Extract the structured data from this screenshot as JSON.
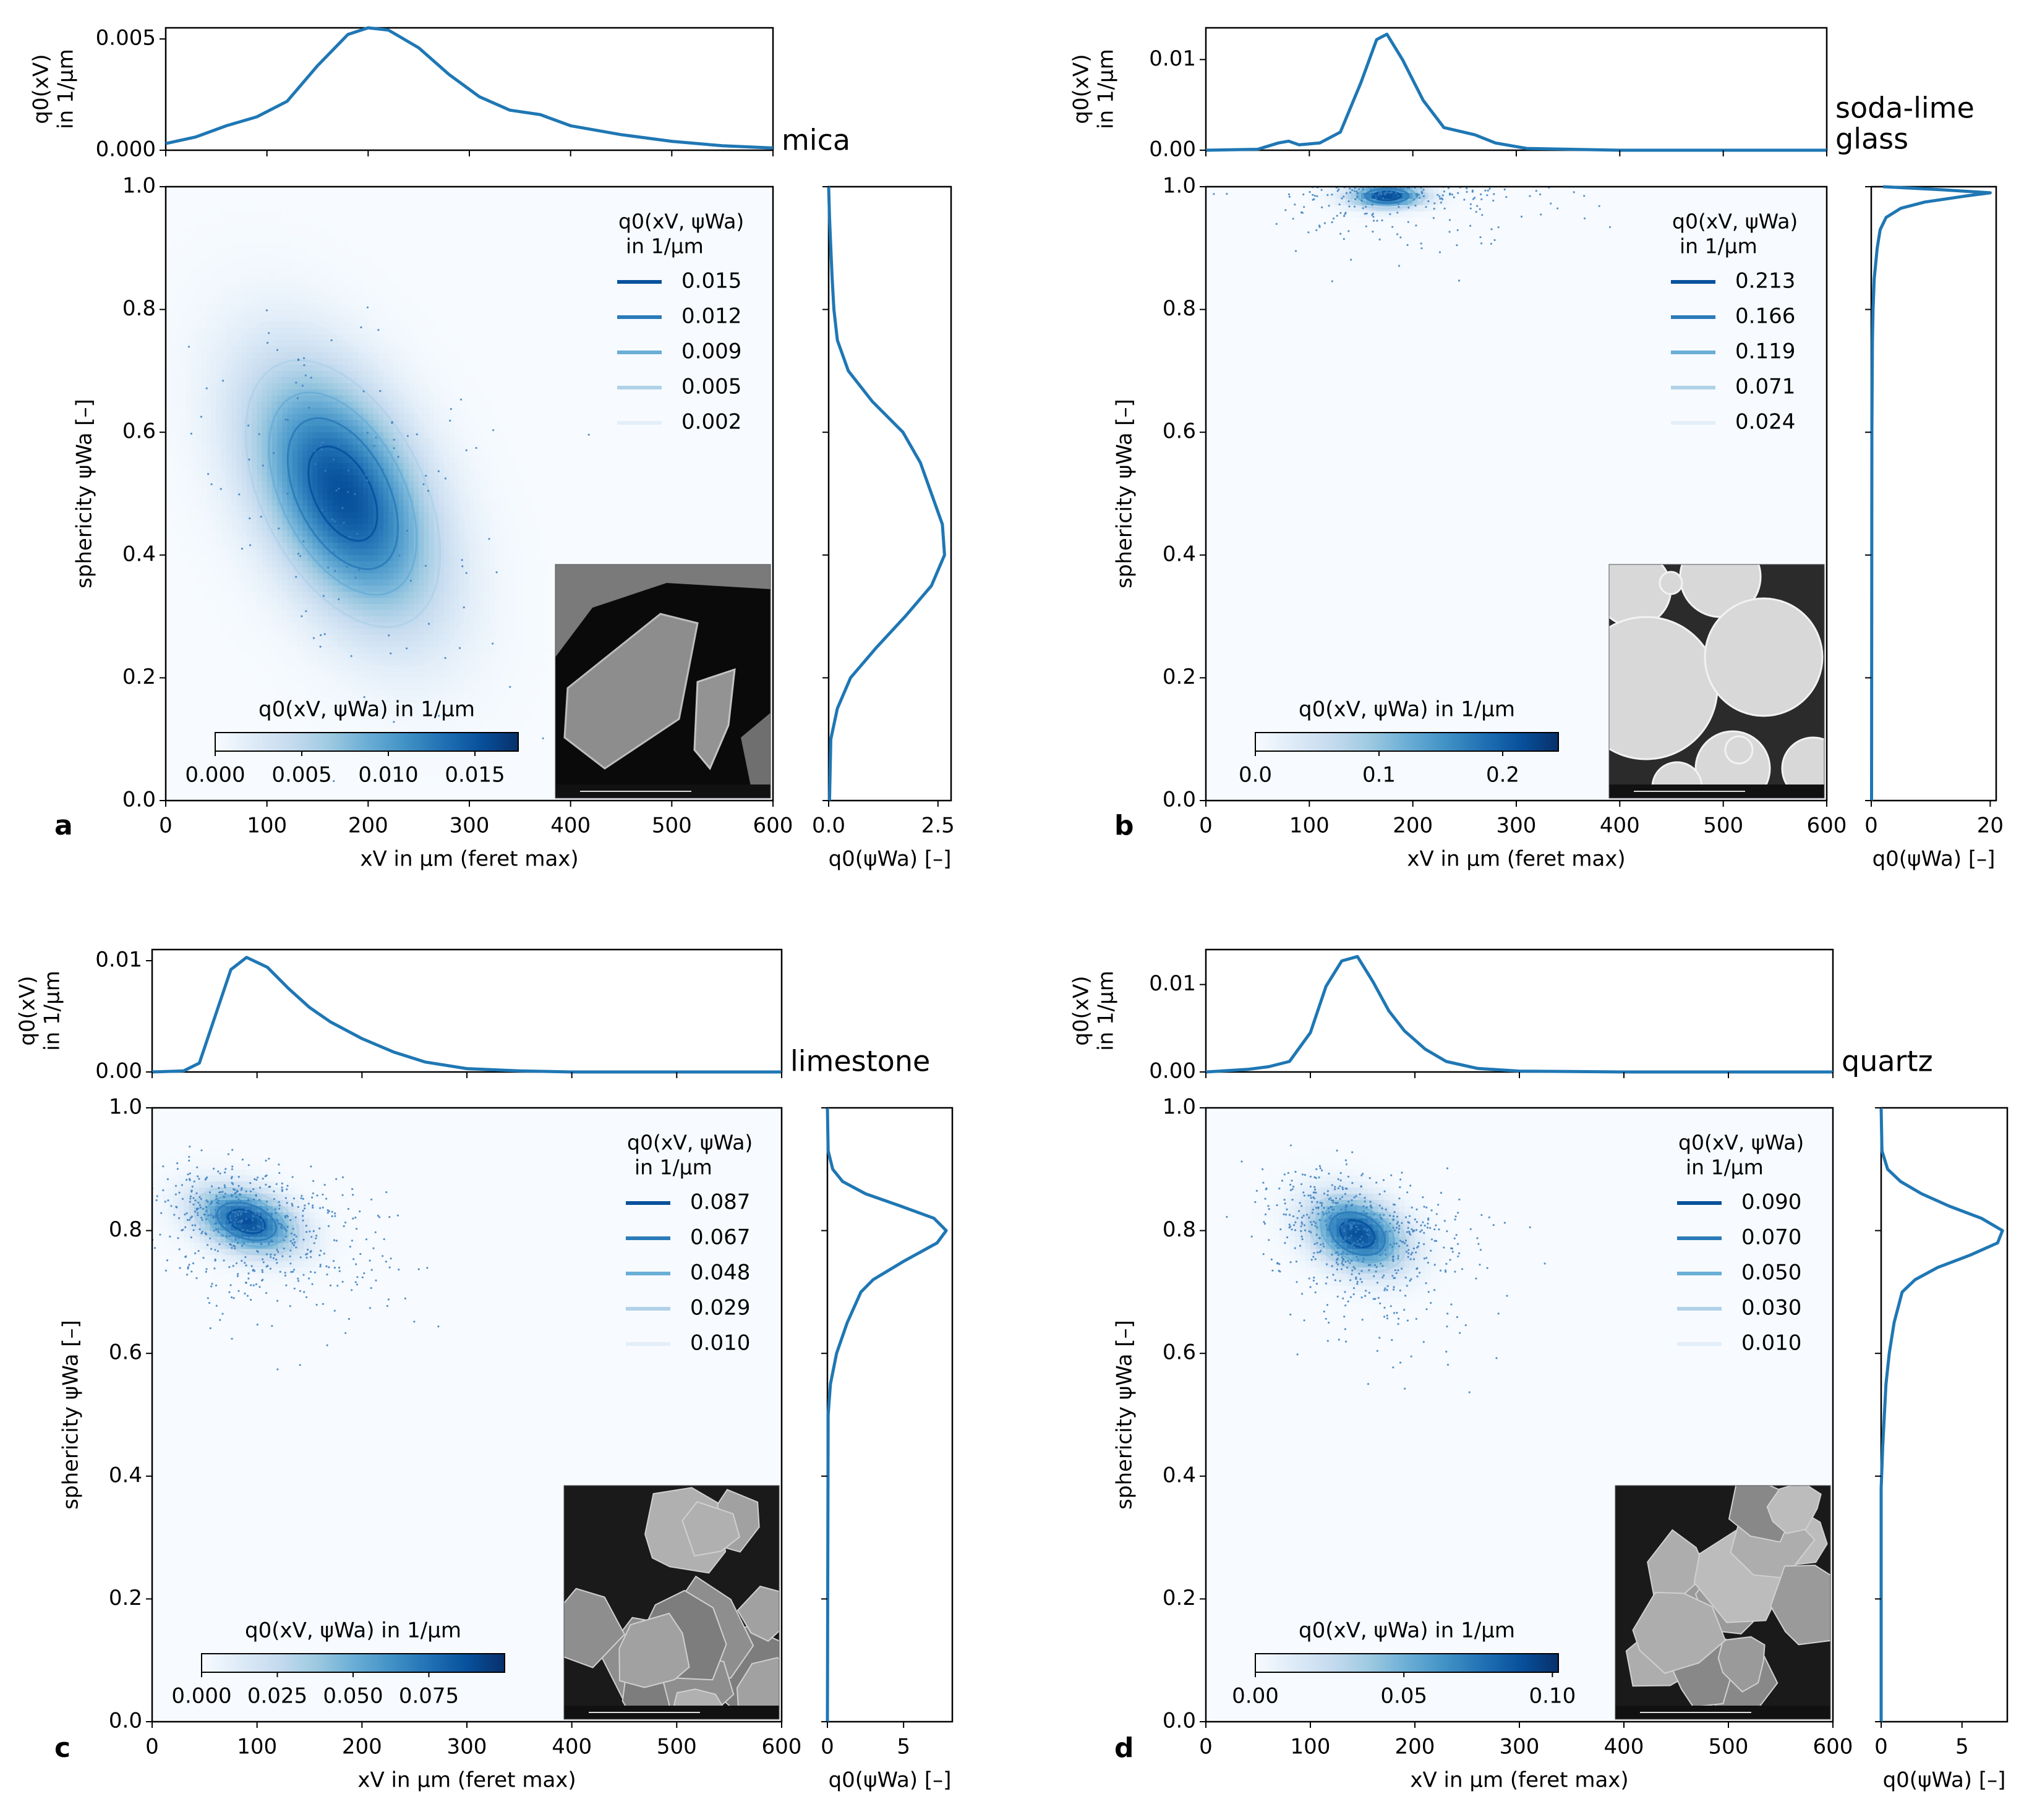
{
  "colors": {
    "line": "#1f77b4",
    "bg": "#f7fbff",
    "blues": [
      "#f7fbff",
      "#deebf7",
      "#c6dbef",
      "#9ecae1",
      "#6baed6",
      "#4292c6",
      "#2171b5",
      "#08519c",
      "#08306b"
    ],
    "contours": [
      "#08519c",
      "#2b7bba",
      "#6aaed6",
      "#b0d2e8",
      "#e3eef9"
    ]
  },
  "chart_data": [
    {
      "type": "heatmap",
      "panel_label": "a",
      "material": [
        "mica"
      ],
      "x_marginal": {
        "ylabel_lines": [
          "q0(xV)",
          "in 1/µm"
        ],
        "ylim": [
          0,
          0.0055
        ],
        "yticks": [
          "0.000",
          "0.005"
        ],
        "ytick_values": [
          0,
          0.005
        ],
        "x": [
          0,
          30,
          60,
          90,
          120,
          150,
          180,
          200,
          220,
          250,
          280,
          310,
          340,
          370,
          400,
          450,
          500,
          550,
          600
        ],
        "y": [
          0.0003,
          0.0006,
          0.0011,
          0.0015,
          0.0022,
          0.0038,
          0.0052,
          0.0055,
          0.0054,
          0.0046,
          0.0034,
          0.0024,
          0.0018,
          0.0016,
          0.0011,
          0.0007,
          0.0004,
          0.0002,
          0.0001
        ]
      },
      "y_marginal": {
        "xlabel": "q0(ψWa) [–]",
        "xlim": [
          0,
          2.8
        ],
        "xticks": [
          "0.0",
          "2.5"
        ],
        "xtick_values": [
          0,
          2.5
        ],
        "psi": [
          0,
          0.1,
          0.15,
          0.2,
          0.25,
          0.3,
          0.35,
          0.4,
          0.45,
          0.5,
          0.55,
          0.6,
          0.65,
          0.7,
          0.75,
          0.8,
          0.85,
          0.9,
          0.95,
          1.0
        ],
        "q": [
          0.02,
          0.05,
          0.2,
          0.5,
          1.1,
          1.75,
          2.35,
          2.65,
          2.6,
          2.35,
          2.1,
          1.7,
          1.0,
          0.45,
          0.2,
          0.12,
          0.08,
          0.05,
          0.02,
          0.0
        ]
      },
      "joint": {
        "xlabel": "xV in µm (feret max)",
        "ylabel": "sphericity ψWa [–]",
        "xlim": [
          0,
          600
        ],
        "ylim": [
          0,
          1
        ],
        "xticks": [
          "0",
          "100",
          "200",
          "300",
          "400",
          "500",
          "600"
        ],
        "xtick_values": [
          0,
          100,
          200,
          300,
          400,
          500,
          600
        ],
        "yticks": [
          "0.0",
          "0.2",
          "0.4",
          "0.6",
          "0.8",
          "1.0"
        ],
        "ytick_values": [
          0,
          0.2,
          0.4,
          0.6,
          0.8,
          1.0
        ],
        "density": {
          "center_x": 175,
          "center_y": 0.5,
          "sigma_x": 62,
          "sigma_y": 0.14,
          "correlation": -0.45
        },
        "scatter": {
          "n": 150,
          "sigma_scale": 1.2
        }
      },
      "legend": {
        "title_lines": [
          "q0(xV, ψWa)",
          "in 1/µm"
        ],
        "levels": [
          "0.015",
          "0.012",
          "0.009",
          "0.005",
          "0.002"
        ]
      },
      "colorbar": {
        "label": "q0(xV, ψWa) in 1/µm",
        "ticks": [
          "0.000",
          "0.005",
          "0.010",
          "0.015"
        ],
        "tick_values": [
          0,
          0.005,
          0.01,
          0.015
        ],
        "range": [
          0,
          0.0175
        ]
      },
      "inset": {
        "kind": "flakes",
        "description_icon": "sem-micrograph-icon"
      }
    },
    {
      "type": "heatmap",
      "panel_label": "b",
      "material": [
        "soda-lime",
        "glass"
      ],
      "x_marginal": {
        "ylabel_lines": [
          "q0(xV)",
          "in 1/µm"
        ],
        "ylim": [
          0,
          0.0135
        ],
        "yticks": [
          "0.00",
          "0.01"
        ],
        "ytick_values": [
          0,
          0.01
        ],
        "x": [
          0,
          50,
          70,
          80,
          90,
          110,
          130,
          150,
          165,
          175,
          190,
          210,
          230,
          260,
          280,
          310,
          400,
          600
        ],
        "y": [
          0.0,
          0.0001,
          0.0008,
          0.001,
          0.0006,
          0.0008,
          0.002,
          0.0075,
          0.0122,
          0.0128,
          0.01,
          0.0055,
          0.0025,
          0.0017,
          0.0008,
          0.0002,
          0.0,
          0.0
        ]
      },
      "y_marginal": {
        "xlabel": "q0(ψWa) [–]",
        "xlim": [
          0,
          21
        ],
        "xticks": [
          "0",
          "20"
        ],
        "xtick_values": [
          0,
          20
        ],
        "psi": [
          0,
          0.6,
          0.75,
          0.8,
          0.85,
          0.9,
          0.93,
          0.95,
          0.965,
          0.975,
          0.985,
          0.99,
          0.995,
          1.0
        ],
        "q": [
          0.05,
          0.1,
          0.2,
          0.3,
          0.5,
          1.0,
          1.5,
          2.5,
          5,
          9,
          16,
          20,
          12,
          2
        ]
      },
      "joint": {
        "xlabel": "xV in µm (feret max)",
        "ylabel": "sphericity ψWa [–]",
        "xlim": [
          0,
          600
        ],
        "ylim": [
          0,
          1
        ],
        "xticks": [
          "0",
          "100",
          "200",
          "300",
          "400",
          "500",
          "600"
        ],
        "xtick_values": [
          0,
          100,
          200,
          300,
          400,
          500,
          600
        ],
        "yticks": [
          "0.0",
          "0.2",
          "0.4",
          "0.6",
          "0.8",
          "1.0"
        ],
        "ytick_values": [
          0,
          0.2,
          0.4,
          0.6,
          0.8,
          1.0
        ],
        "density": {
          "center_x": 175,
          "center_y": 0.985,
          "sigma_x": 24,
          "sigma_y": 0.013,
          "correlation": 0.0
        },
        "scatter": {
          "n": 220,
          "sigma_scale": 2.4
        }
      },
      "legend": {
        "title_lines": [
          "q0(xV, ψWa)",
          "in 1/µm"
        ],
        "levels": [
          "0.213",
          "0.166",
          "0.119",
          "0.071",
          "0.024"
        ]
      },
      "colorbar": {
        "label": "q0(xV, ψWa) in 1/µm",
        "ticks": [
          "0.0",
          "0.1",
          "0.2"
        ],
        "tick_values": [
          0,
          0.1,
          0.2
        ],
        "range": [
          0,
          0.245
        ]
      },
      "inset": {
        "kind": "spheres"
      }
    },
    {
      "type": "heatmap",
      "panel_label": "c",
      "material": [
        "limestone"
      ],
      "x_marginal": {
        "ylabel_lines": [
          "q0(xV)",
          "in 1/µm"
        ],
        "ylim": [
          0,
          0.011
        ],
        "yticks": [
          "0.00",
          "0.01"
        ],
        "ytick_values": [
          0,
          0.01
        ],
        "x": [
          0,
          30,
          45,
          60,
          75,
          90,
          110,
          130,
          150,
          170,
          200,
          230,
          260,
          300,
          350,
          400,
          600
        ],
        "y": [
          0.0,
          0.0001,
          0.0008,
          0.005,
          0.0092,
          0.0103,
          0.0094,
          0.0075,
          0.0058,
          0.0045,
          0.003,
          0.0018,
          0.0009,
          0.0003,
          0.0001,
          0.0,
          0.0
        ]
      },
      "y_marginal": {
        "xlabel": "q0(ψWa) [–]",
        "xlim": [
          0,
          8.2
        ],
        "xticks": [
          "0",
          "5"
        ],
        "xtick_values": [
          0,
          5
        ],
        "psi": [
          0,
          0.5,
          0.55,
          0.6,
          0.65,
          0.7,
          0.72,
          0.75,
          0.78,
          0.8,
          0.82,
          0.84,
          0.86,
          0.88,
          0.9,
          0.93,
          1.0
        ],
        "q": [
          0.0,
          0.05,
          0.2,
          0.6,
          1.3,
          2.2,
          3.0,
          5.0,
          7.2,
          7.8,
          7.0,
          4.8,
          2.5,
          1.0,
          0.35,
          0.05,
          0.0
        ]
      },
      "joint": {
        "xlabel": "xV in µm (feret max)",
        "ylabel": "sphericity ψWa [–]",
        "xlim": [
          0,
          600
        ],
        "ylim": [
          0,
          1
        ],
        "xticks": [
          "0",
          "100",
          "200",
          "300",
          "400",
          "500",
          "600"
        ],
        "xtick_values": [
          0,
          100,
          200,
          300,
          400,
          500,
          600
        ],
        "yticks": [
          "0.0",
          "0.2",
          "0.4",
          "0.6",
          "0.8",
          "1.0"
        ],
        "ytick_values": [
          0,
          0.2,
          0.4,
          0.6,
          0.8,
          1.0
        ],
        "density": {
          "center_x": 90,
          "center_y": 0.815,
          "sigma_x": 32,
          "sigma_y": 0.035,
          "correlation": -0.35
        },
        "scatter": {
          "n": 600,
          "sigma_scale": 1.6
        }
      },
      "legend": {
        "title_lines": [
          "q0(xV, ψWa)",
          "in 1/µm"
        ],
        "levels": [
          "0.087",
          "0.067",
          "0.048",
          "0.029",
          "0.010"
        ]
      },
      "colorbar": {
        "label": "q0(xV, ψWa) in 1/µm",
        "ticks": [
          "0.000",
          "0.025",
          "0.050",
          "0.075"
        ],
        "tick_values": [
          0,
          0.025,
          0.05,
          0.075
        ],
        "range": [
          0,
          0.1
        ]
      },
      "inset": {
        "kind": "rocks"
      }
    },
    {
      "type": "heatmap",
      "panel_label": "d",
      "material": [
        "quartz"
      ],
      "x_marginal": {
        "ylabel_lines": [
          "q0(xV)",
          "in 1/µm"
        ],
        "ylim": [
          0,
          0.014
        ],
        "yticks": [
          "0.00",
          "0.01"
        ],
        "ytick_values": [
          0,
          0.01
        ],
        "x": [
          0,
          40,
          60,
          80,
          100,
          115,
          130,
          145,
          160,
          175,
          190,
          210,
          230,
          260,
          300,
          400,
          600
        ],
        "y": [
          0.0,
          0.0003,
          0.0006,
          0.0012,
          0.0045,
          0.0098,
          0.0127,
          0.0132,
          0.0103,
          0.007,
          0.0047,
          0.0026,
          0.0012,
          0.0004,
          0.0001,
          0.0,
          0.0
        ]
      },
      "y_marginal": {
        "xlabel": "q0(ψWa) [–]",
        "xlim": [
          0,
          7.8
        ],
        "xticks": [
          "0",
          "5"
        ],
        "xtick_values": [
          0,
          5
        ],
        "psi": [
          0,
          0.38,
          0.45,
          0.55,
          0.6,
          0.65,
          0.7,
          0.72,
          0.74,
          0.76,
          0.78,
          0.8,
          0.82,
          0.84,
          0.86,
          0.88,
          0.9,
          0.93,
          1.0
        ],
        "q": [
          0.0,
          0.0,
          0.1,
          0.3,
          0.5,
          0.8,
          1.3,
          2.1,
          3.5,
          5.5,
          7.2,
          7.5,
          6.2,
          4.2,
          2.5,
          1.2,
          0.4,
          0.05,
          0.0
        ]
      },
      "joint": {
        "xlabel": "xV in µm (feret max)",
        "ylabel": "sphericity ψWa [–]",
        "xlim": [
          0,
          600
        ],
        "ylim": [
          0,
          1
        ],
        "xticks": [
          "0",
          "100",
          "200",
          "300",
          "400",
          "500",
          "600"
        ],
        "xtick_values": [
          0,
          100,
          200,
          300,
          400,
          500,
          600
        ],
        "yticks": [
          "0.0",
          "0.2",
          "0.4",
          "0.6",
          "0.8",
          "1.0"
        ],
        "ytick_values": [
          0,
          0.2,
          0.4,
          0.6,
          0.8,
          1.0
        ],
        "density": {
          "center_x": 145,
          "center_y": 0.795,
          "sigma_x": 30,
          "sigma_y": 0.04,
          "correlation": -0.3
        },
        "scatter": {
          "n": 600,
          "sigma_scale": 1.6
        }
      },
      "legend": {
        "title_lines": [
          "q0(xV, ψWa)",
          "in 1/µm"
        ],
        "levels": [
          "0.090",
          "0.070",
          "0.050",
          "0.030",
          "0.010"
        ]
      },
      "colorbar": {
        "label": "q0(xV, ψWa) in 1/µm",
        "ticks": [
          "0.00",
          "0.05",
          "0.10"
        ],
        "tick_values": [
          0,
          0.05,
          0.1
        ],
        "range": [
          0,
          0.102
        ]
      },
      "inset": {
        "kind": "grains"
      }
    }
  ]
}
